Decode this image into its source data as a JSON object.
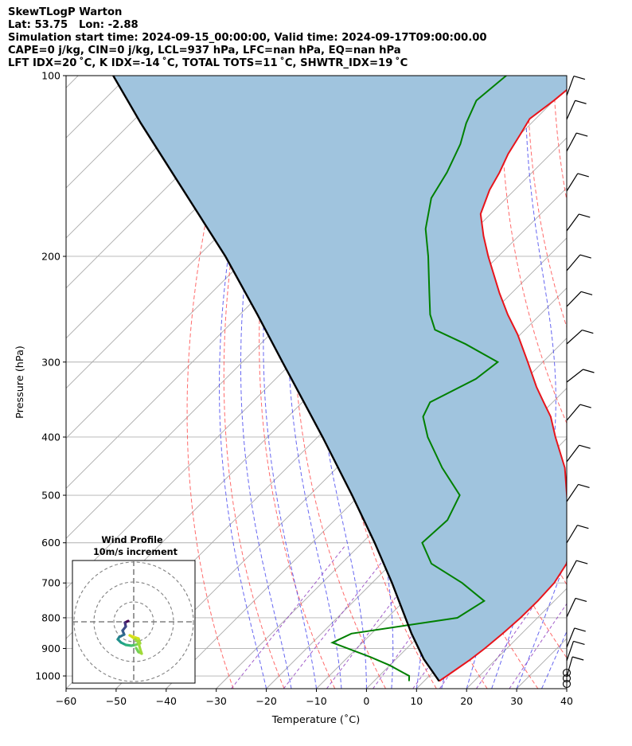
{
  "header": {
    "line1": "SkewTLogP Warton",
    "line2": "Lat: 53.75   Lon: -2.88",
    "line3": "Simulation start time: 2024-09-15_00:00:00, Valid time: 2024-09-17T09:00:00.00",
    "line4": "CAPE=0 j/kg, CIN=0 j/kg, LCL=937 hPa, LFC=nan hPa, EQ=nan hPa",
    "line5": "LFT IDX=20 ˚C, K IDX=-14 ˚C, TOTAL TOTS=11 ˚C, SHWTR_IDX=19 ˚C"
  },
  "chart_data": {
    "type": "line",
    "xlabel": "Temperature (˚C)",
    "ylabel": "Pressure (hPa)",
    "xlim": [
      -60,
      40
    ],
    "ylim": [
      1050,
      100
    ],
    "y_scale": "log",
    "skew_deg": 45,
    "xticks": [
      -60,
      -50,
      -40,
      -30,
      -20,
      -10,
      0,
      10,
      20,
      30,
      40
    ],
    "yticks": [
      1000,
      900,
      800,
      700,
      600,
      500,
      400,
      300,
      200,
      100
    ],
    "grid": true,
    "colors": {
      "temperature": "#e8141b",
      "dewpoint": "#008000",
      "parcel": "#000000",
      "shade": "#a0c4de",
      "dry_adiabat": "#ff5050",
      "moist_adiabat": "#4040ee",
      "mixing_ratio": "#9040c0",
      "isotherm": "#aaaaaa"
    },
    "series": [
      {
        "key": "temperature",
        "p": [
          1020,
          1000,
          970,
          940,
          900,
          850,
          800,
          750,
          700,
          650,
          600,
          550,
          500,
          450,
          400,
          370,
          350,
          330,
          300,
          270,
          250,
          230,
          200,
          185,
          170,
          155,
          145,
          135,
          125,
          118,
          110,
          100
        ],
        "t": [
          13,
          13.5,
          14.2,
          14.9,
          15.6,
          16.2,
          16.6,
          16.7,
          16.4,
          15.0,
          11.7,
          6.8,
          1.4,
          -4.5,
          -12.5,
          -17.5,
          -21.8,
          -26.3,
          -33.0,
          -40.5,
          -46.5,
          -52.5,
          -62.0,
          -67.0,
          -72.0,
          -75.0,
          -76.5,
          -78.5,
          -80.0,
          -81.2,
          -80.0,
          -79.0
        ]
      },
      {
        "key": "dewpoint",
        "p": [
          1020,
          1000,
          960,
          930,
          880,
          850,
          800,
          750,
          700,
          650,
          600,
          550,
          500,
          450,
          400,
          370,
          350,
          320,
          300,
          280,
          265,
          250,
          230,
          200,
          180,
          160,
          145,
          130,
          120,
          110,
          100
        ],
        "t": [
          7.0,
          6.0,
          0.0,
          -5.5,
          -16.0,
          -14.0,
          4.0,
          6.0,
          -2.0,
          -12.0,
          -18.0,
          -17.5,
          -20.0,
          -29.0,
          -38.0,
          -43.0,
          -44.5,
          -40.0,
          -39.0,
          -49.0,
          -58.0,
          -62.0,
          -66.5,
          -74.0,
          -80.0,
          -85.0,
          -87.0,
          -90.0,
          -93.0,
          -95.5,
          -94.5
        ]
      },
      {
        "key": "parcel",
        "p": [
          1020,
          937,
          850,
          700,
          600,
          500,
          400,
          300,
          250,
          200,
          150,
          120,
          100
        ],
        "t": [
          13.0,
          5.5,
          -2.0,
          -16.0,
          -27.5,
          -41.5,
          -59.0,
          -82.0,
          -96.5,
          -114.5,
          -139.0,
          -158.0,
          -173.0
        ]
      }
    ],
    "hodograph": {
      "title": "Wind Profile",
      "subtitle": "10m/s increment",
      "ring_step_ms": 10
    }
  }
}
